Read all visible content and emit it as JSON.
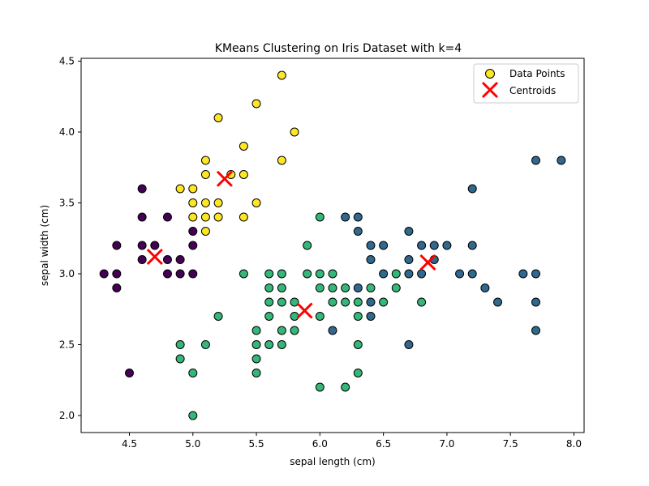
{
  "chart_data": {
    "type": "scatter",
    "title": "KMeans Clustering on Iris Dataset with k=4",
    "xlabel": "sepal length (cm)",
    "ylabel": "sepal width (cm)",
    "xlim": [
      4.12,
      8.08
    ],
    "ylim": [
      1.88,
      4.52
    ],
    "xticks": [
      "4.5",
      "5.0",
      "5.5",
      "6.0",
      "6.5",
      "7.0",
      "7.5",
      "8.0"
    ],
    "yticks": [
      "2.0",
      "2.5",
      "3.0",
      "3.5",
      "4.0",
      "4.5"
    ],
    "legend": {
      "position": "top-right",
      "entries": [
        "Data Points",
        "Centroids"
      ]
    },
    "cluster_colors": [
      "#440154",
      "#31688e",
      "#35b779",
      "#fde725"
    ],
    "centroid_color": "#ff0000",
    "clusters": [
      {
        "color": "#440154",
        "points": [
          [
            4.3,
            3.0
          ],
          [
            4.4,
            3.2
          ],
          [
            4.4,
            3.0
          ],
          [
            4.4,
            2.9
          ],
          [
            4.5,
            2.3
          ],
          [
            4.6,
            3.6
          ],
          [
            4.6,
            3.4
          ],
          [
            4.6,
            3.2
          ],
          [
            4.6,
            3.1
          ],
          [
            4.7,
            3.2
          ],
          [
            4.8,
            3.4
          ],
          [
            4.8,
            3.1
          ],
          [
            4.8,
            3.0
          ],
          [
            4.9,
            3.1
          ],
          [
            4.9,
            3.0
          ],
          [
            5.0,
            3.3
          ],
          [
            5.0,
            3.2
          ],
          [
            5.0,
            3.0
          ]
        ]
      },
      {
        "color": "#31688e",
        "points": [
          [
            6.2,
            3.4
          ],
          [
            6.3,
            3.4
          ],
          [
            6.3,
            3.3
          ],
          [
            6.3,
            2.9
          ],
          [
            6.4,
            3.2
          ],
          [
            6.4,
            3.1
          ],
          [
            6.4,
            2.8
          ],
          [
            6.4,
            2.7
          ],
          [
            6.5,
            3.2
          ],
          [
            6.5,
            3.0
          ],
          [
            6.1,
            2.6
          ],
          [
            6.7,
            3.3
          ],
          [
            6.7,
            3.1
          ],
          [
            6.7,
            3.0
          ],
          [
            6.7,
            2.5
          ],
          [
            6.8,
            3.2
          ],
          [
            6.8,
            3.0
          ],
          [
            6.9,
            3.2
          ],
          [
            6.9,
            3.1
          ],
          [
            7.0,
            3.2
          ],
          [
            7.1,
            3.0
          ],
          [
            7.2,
            3.6
          ],
          [
            7.2,
            3.2
          ],
          [
            7.2,
            3.0
          ],
          [
            7.3,
            2.9
          ],
          [
            7.4,
            2.8
          ],
          [
            7.6,
            3.0
          ],
          [
            7.7,
            3.8
          ],
          [
            7.7,
            3.0
          ],
          [
            7.7,
            2.8
          ],
          [
            7.7,
            2.6
          ],
          [
            7.9,
            3.8
          ]
        ]
      },
      {
        "color": "#35b779",
        "points": [
          [
            4.9,
            2.5
          ],
          [
            4.9,
            2.4
          ],
          [
            5.0,
            2.3
          ],
          [
            5.0,
            2.0
          ],
          [
            5.1,
            2.5
          ],
          [
            5.2,
            2.7
          ],
          [
            5.4,
            3.0
          ],
          [
            5.5,
            2.6
          ],
          [
            5.5,
            2.5
          ],
          [
            5.5,
            2.4
          ],
          [
            5.5,
            2.3
          ],
          [
            5.6,
            3.0
          ],
          [
            5.6,
            2.9
          ],
          [
            5.6,
            2.8
          ],
          [
            5.6,
            2.7
          ],
          [
            5.6,
            2.5
          ],
          [
            5.7,
            3.0
          ],
          [
            5.7,
            2.9
          ],
          [
            5.7,
            2.8
          ],
          [
            5.7,
            2.6
          ],
          [
            5.7,
            2.5
          ],
          [
            5.8,
            2.8
          ],
          [
            5.8,
            2.7
          ],
          [
            5.8,
            2.6
          ],
          [
            5.9,
            3.2
          ],
          [
            5.9,
            3.0
          ],
          [
            6.0,
            3.4
          ],
          [
            6.0,
            3.0
          ],
          [
            6.0,
            2.9
          ],
          [
            6.0,
            2.7
          ],
          [
            6.0,
            2.2
          ],
          [
            6.1,
            3.0
          ],
          [
            6.1,
            2.9
          ],
          [
            6.1,
            2.8
          ],
          [
            6.2,
            2.9
          ],
          [
            6.2,
            2.8
          ],
          [
            6.2,
            2.2
          ],
          [
            6.3,
            2.8
          ],
          [
            6.3,
            2.7
          ],
          [
            6.3,
            2.5
          ],
          [
            6.3,
            2.3
          ],
          [
            6.4,
            2.9
          ],
          [
            6.5,
            2.8
          ],
          [
            6.6,
            3.0
          ],
          [
            6.6,
            2.9
          ],
          [
            6.8,
            2.8
          ]
        ]
      },
      {
        "color": "#fde725",
        "points": [
          [
            4.9,
            3.6
          ],
          [
            5.0,
            3.6
          ],
          [
            5.0,
            3.5
          ],
          [
            5.0,
            3.4
          ],
          [
            5.1,
            3.8
          ],
          [
            5.1,
            3.7
          ],
          [
            5.1,
            3.5
          ],
          [
            5.1,
            3.4
          ],
          [
            5.1,
            3.3
          ],
          [
            5.2,
            4.1
          ],
          [
            5.2,
            3.5
          ],
          [
            5.2,
            3.4
          ],
          [
            5.3,
            3.7
          ],
          [
            5.4,
            3.9
          ],
          [
            5.4,
            3.7
          ],
          [
            5.4,
            3.4
          ],
          [
            5.5,
            4.2
          ],
          [
            5.5,
            3.5
          ],
          [
            5.7,
            4.4
          ],
          [
            5.7,
            3.8
          ],
          [
            5.8,
            4.0
          ]
        ]
      }
    ],
    "centroids": [
      [
        4.7,
        3.12
      ],
      [
        6.85,
        3.08
      ],
      [
        5.88,
        2.74
      ],
      [
        5.25,
        3.67
      ]
    ]
  }
}
